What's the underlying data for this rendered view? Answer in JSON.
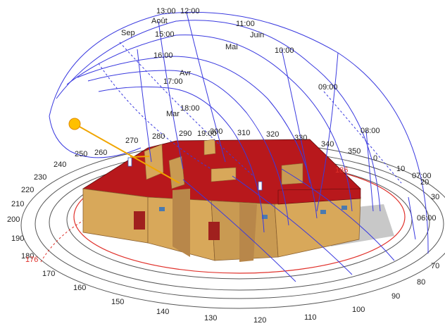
{
  "colors": {
    "sun_path_grid": "#3a3adf",
    "sun": "#ffc000",
    "ray": "#f0a500",
    "roof": "#b8181c",
    "wall": "#d8a85a",
    "wall_shadow": "#b8874a",
    "rings": "#555555",
    "horizon_red": "#e0302a",
    "ground_shadow": "#c8c8c8"
  },
  "icons": {
    "sun": "sun-icon"
  },
  "hour_labels": [
    "13:00",
    "12:00",
    "11:00",
    "15:00",
    "10:00",
    "16:00",
    "09:00",
    "17:00",
    "18:00",
    "19:00",
    "08:00",
    "07:00",
    "06:00"
  ],
  "month_labels": [
    "Août",
    "Sep",
    "Juin",
    "Mai",
    "Avr",
    "Mar"
  ],
  "azimuth_labels": [
    "270",
    "280",
    "290",
    "300",
    "310",
    "320",
    "330",
    "340",
    "350",
    "0",
    "10",
    "20",
    "30",
    "260",
    "250",
    "240",
    "230",
    "220",
    "210",
    "200",
    "190",
    "180",
    "170",
    "160",
    "150",
    "140",
    "130",
    "120",
    "110",
    "100",
    "90",
    "80",
    "70"
  ],
  "red_marks": [
    "186",
    "176"
  ]
}
